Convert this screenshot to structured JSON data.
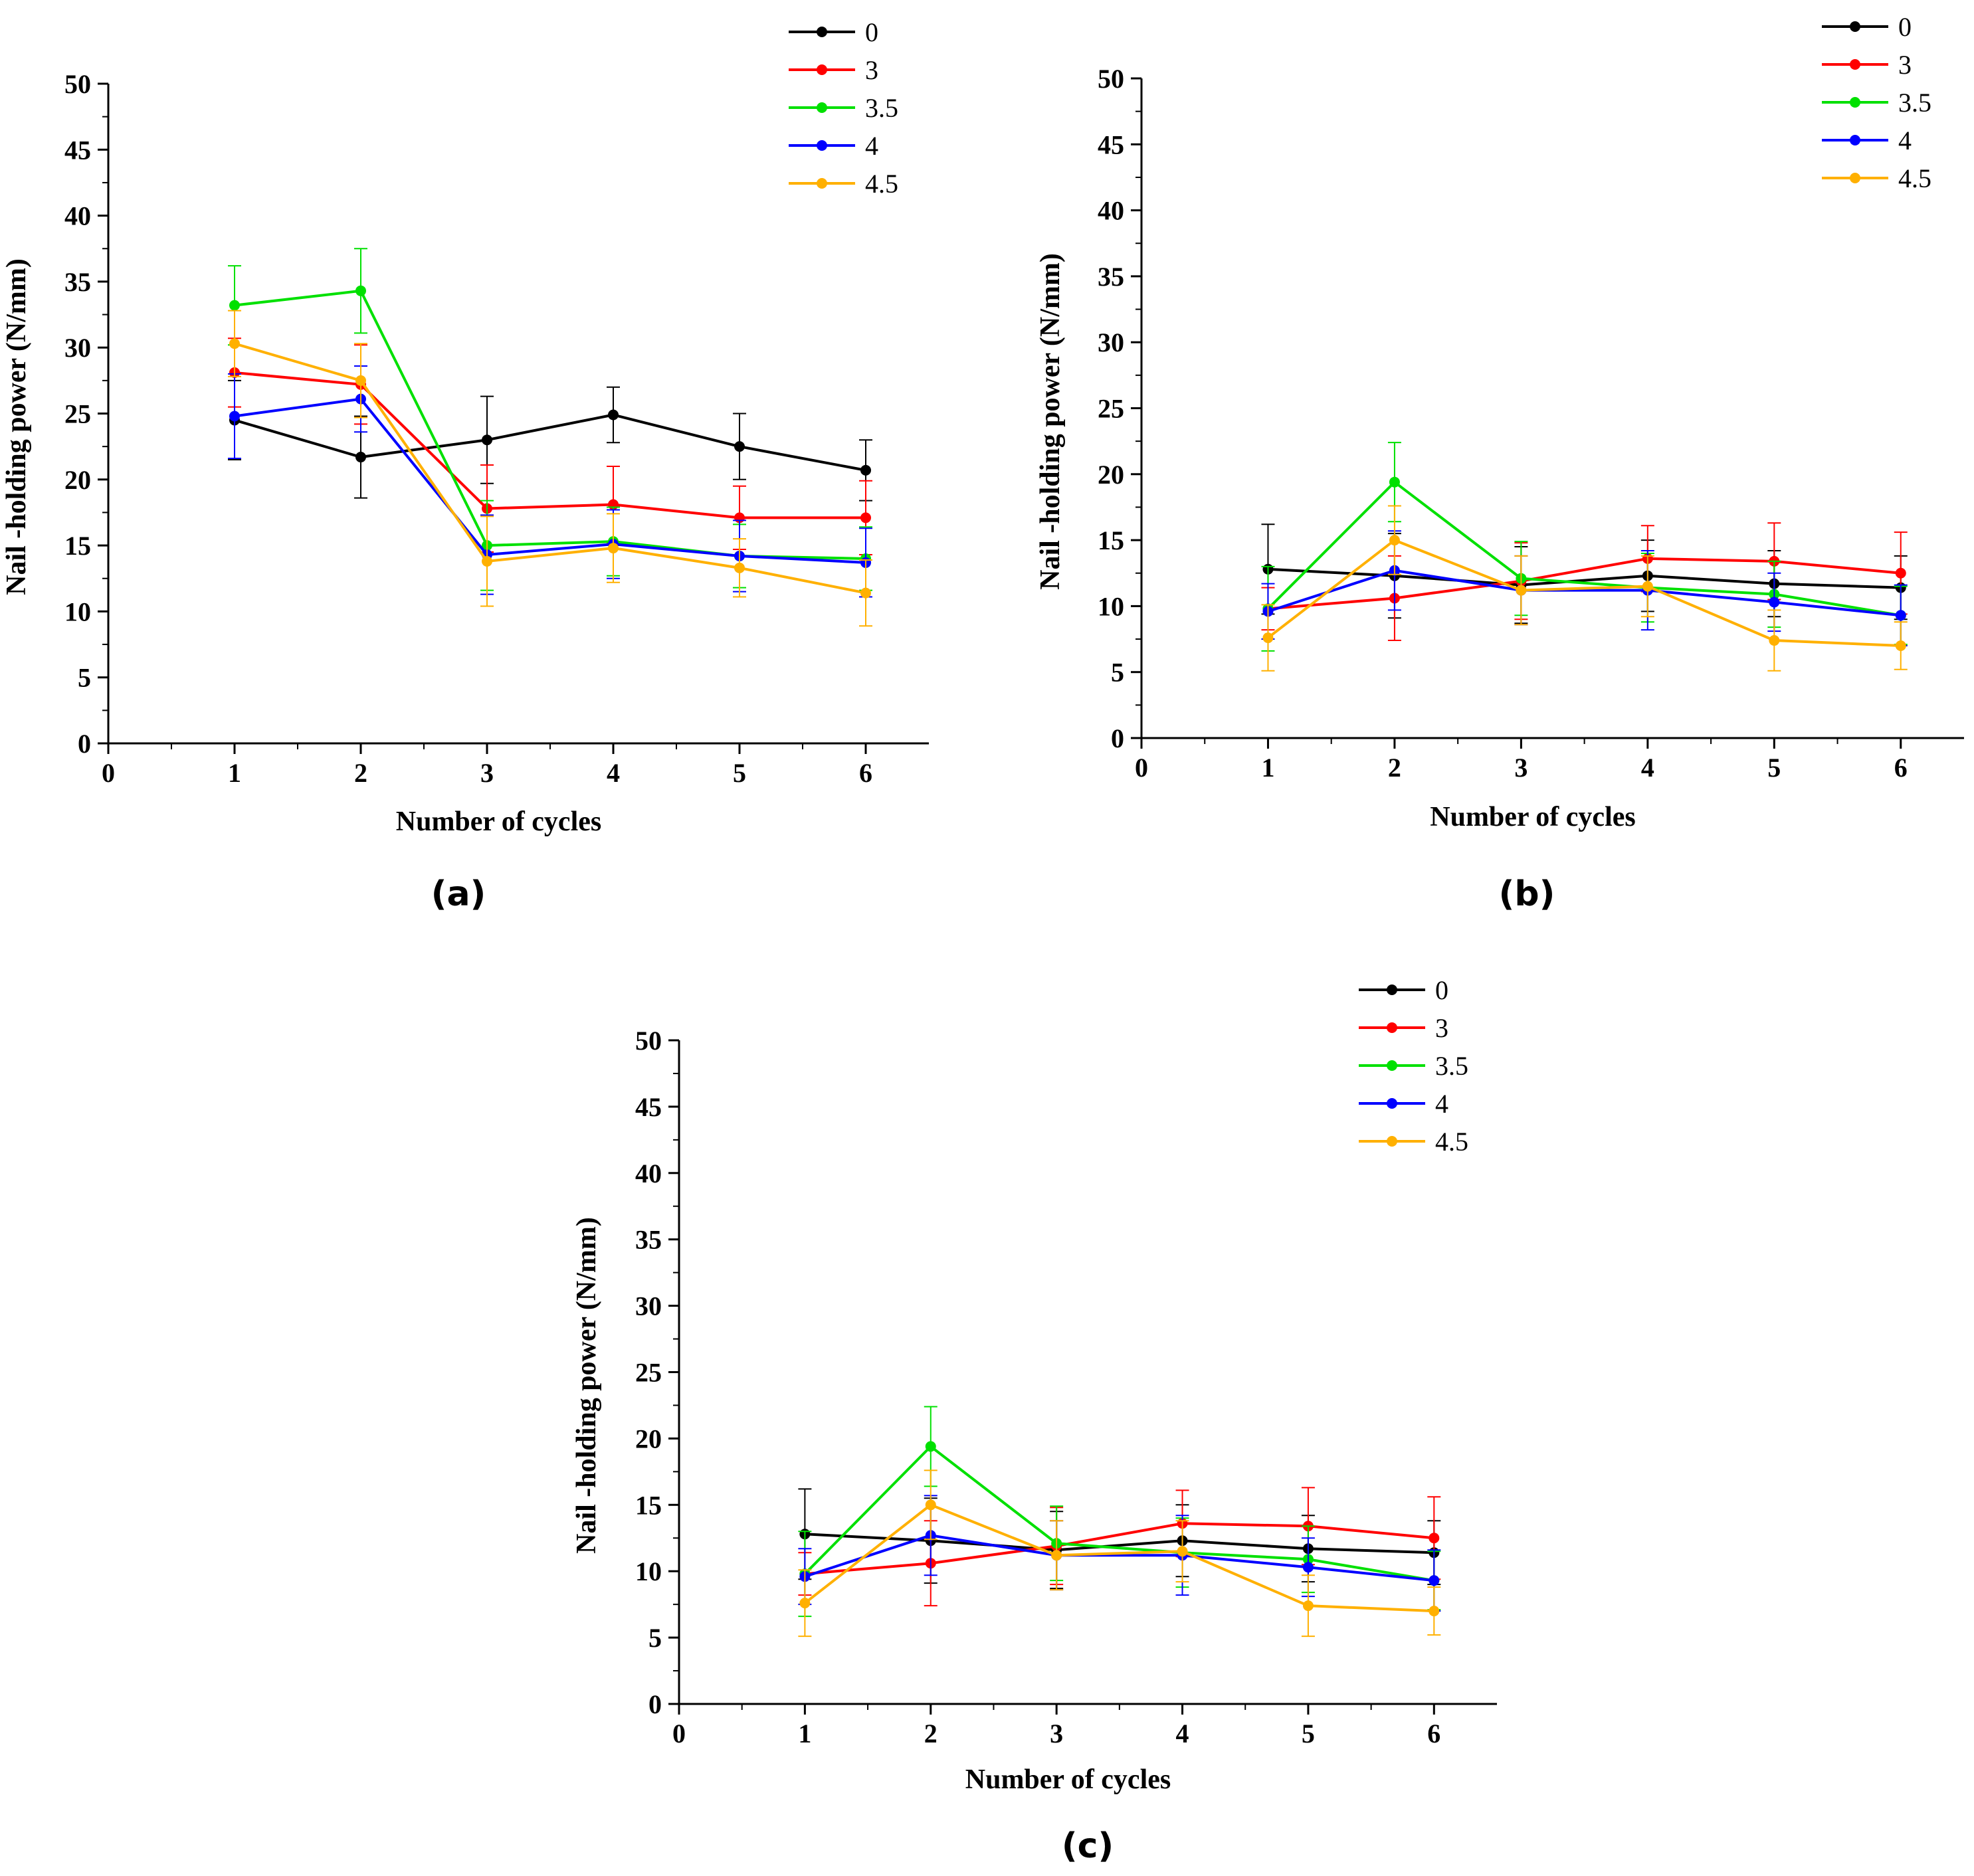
{
  "chart_data": [
    {
      "type": "line",
      "panel": "(a)",
      "xlabel": "Number of cycles",
      "ylabel": "Nail -holding power (N/mm)",
      "xlim": [
        0,
        6.5
      ],
      "ylim": [
        0,
        50
      ],
      "x_ticks": [
        0,
        1,
        2,
        3,
        4,
        5,
        6
      ],
      "y_ticks": [
        0,
        5,
        10,
        15,
        20,
        25,
        30,
        35,
        40,
        45,
        50
      ],
      "legend_position": "top-right",
      "x": [
        1,
        2,
        3,
        4,
        5,
        6
      ],
      "series": [
        {
          "name": "0",
          "color": "#000000",
          "values": [
            24.5,
            21.7,
            23.0,
            24.9,
            22.5,
            20.7
          ],
          "errors": [
            3.0,
            3.1,
            3.3,
            2.1,
            2.5,
            2.3
          ]
        },
        {
          "name": "3",
          "color": "#ff0000",
          "values": [
            28.1,
            27.2,
            17.8,
            18.1,
            17.1,
            17.1
          ],
          "errors": [
            2.6,
            3.0,
            3.3,
            2.9,
            2.4,
            2.8
          ]
        },
        {
          "name": "3.5",
          "color": "#00e000",
          "values": [
            33.2,
            34.3,
            15.0,
            15.3,
            14.2,
            14.0
          ],
          "errors": [
            3.0,
            3.2,
            3.4,
            2.6,
            2.4,
            2.4
          ]
        },
        {
          "name": "4",
          "color": "#0000ff",
          "values": [
            24.8,
            26.1,
            14.3,
            15.1,
            14.2,
            13.7
          ],
          "errors": [
            3.2,
            2.5,
            3.0,
            2.6,
            2.7,
            2.6
          ]
        },
        {
          "name": "4.5",
          "color": "#ffb000",
          "values": [
            30.3,
            27.5,
            13.8,
            14.8,
            13.3,
            11.4
          ],
          "errors": [
            2.5,
            2.8,
            3.4,
            2.6,
            2.2,
            2.5
          ]
        }
      ]
    },
    {
      "type": "line",
      "panel": "(b)",
      "xlabel": "Number of cycles",
      "ylabel": "Nail -holding power (N/mm)",
      "xlim": [
        0,
        6.5
      ],
      "ylim": [
        0,
        50
      ],
      "x_ticks": [
        0,
        1,
        2,
        3,
        4,
        5,
        6
      ],
      "y_ticks": [
        0,
        5,
        10,
        15,
        20,
        25,
        30,
        35,
        40,
        45,
        50
      ],
      "legend_position": "top-right",
      "x": [
        1,
        2,
        3,
        4,
        5,
        6
      ],
      "series": [
        {
          "name": "0",
          "color": "#000000",
          "values": [
            12.8,
            12.3,
            11.6,
            12.3,
            11.7,
            11.4
          ],
          "errors": [
            3.4,
            3.2,
            2.9,
            2.7,
            2.5,
            2.4
          ]
        },
        {
          "name": "3",
          "color": "#ff0000",
          "values": [
            9.8,
            10.6,
            11.9,
            13.6,
            13.4,
            12.5
          ],
          "errors": [
            1.6,
            3.2,
            2.9,
            2.5,
            2.9,
            3.1
          ]
        },
        {
          "name": "3.5",
          "color": "#00e000",
          "values": [
            9.8,
            19.4,
            12.1,
            11.4,
            10.9,
            9.3
          ],
          "errors": [
            3.2,
            3.0,
            2.8,
            2.6,
            2.5,
            2.2
          ]
        },
        {
          "name": "4",
          "color": "#0000ff",
          "values": [
            9.6,
            12.7,
            11.2,
            11.2,
            10.3,
            9.3
          ],
          "errors": [
            2.1,
            3.0,
            2.6,
            3.0,
            2.2,
            2.3
          ]
        },
        {
          "name": "4.5",
          "color": "#ffb000",
          "values": [
            7.6,
            15.0,
            11.2,
            11.5,
            7.4,
            7.0
          ],
          "errors": [
            2.5,
            2.6,
            2.6,
            2.3,
            2.3,
            1.8
          ]
        }
      ]
    },
    {
      "type": "line",
      "panel": "(c)",
      "xlabel": "Number of cycles",
      "ylabel": "Nail -holding power (N/mm)",
      "xlim": [
        0,
        6.5
      ],
      "ylim": [
        0,
        50
      ],
      "x_ticks": [
        0,
        1,
        2,
        3,
        4,
        5,
        6
      ],
      "y_ticks": [
        0,
        5,
        10,
        15,
        20,
        25,
        30,
        35,
        40,
        45,
        50
      ],
      "legend_position": "top-right",
      "x": [
        1,
        2,
        3,
        4,
        5,
        6
      ],
      "series": [
        {
          "name": "0",
          "color": "#000000",
          "values": [
            12.8,
            12.3,
            11.6,
            12.3,
            11.7,
            11.4
          ],
          "errors": [
            3.4,
            3.2,
            2.9,
            2.7,
            2.5,
            2.4
          ]
        },
        {
          "name": "3",
          "color": "#ff0000",
          "values": [
            9.8,
            10.6,
            11.9,
            13.6,
            13.4,
            12.5
          ],
          "errors": [
            1.6,
            3.2,
            2.9,
            2.5,
            2.9,
            3.1
          ]
        },
        {
          "name": "3.5",
          "color": "#00e000",
          "values": [
            9.8,
            19.4,
            12.1,
            11.4,
            10.9,
            9.3
          ],
          "errors": [
            3.2,
            3.0,
            2.8,
            2.6,
            2.5,
            2.2
          ]
        },
        {
          "name": "4",
          "color": "#0000ff",
          "values": [
            9.6,
            12.7,
            11.2,
            11.2,
            10.3,
            9.3
          ],
          "errors": [
            2.1,
            3.0,
            2.6,
            3.0,
            2.2,
            2.3
          ]
        },
        {
          "name": "4.5",
          "color": "#ffb000",
          "values": [
            7.6,
            15.0,
            11.2,
            11.5,
            7.4,
            7.0
          ],
          "errors": [
            2.5,
            2.6,
            2.6,
            2.3,
            2.3,
            1.8
          ]
        }
      ]
    }
  ]
}
